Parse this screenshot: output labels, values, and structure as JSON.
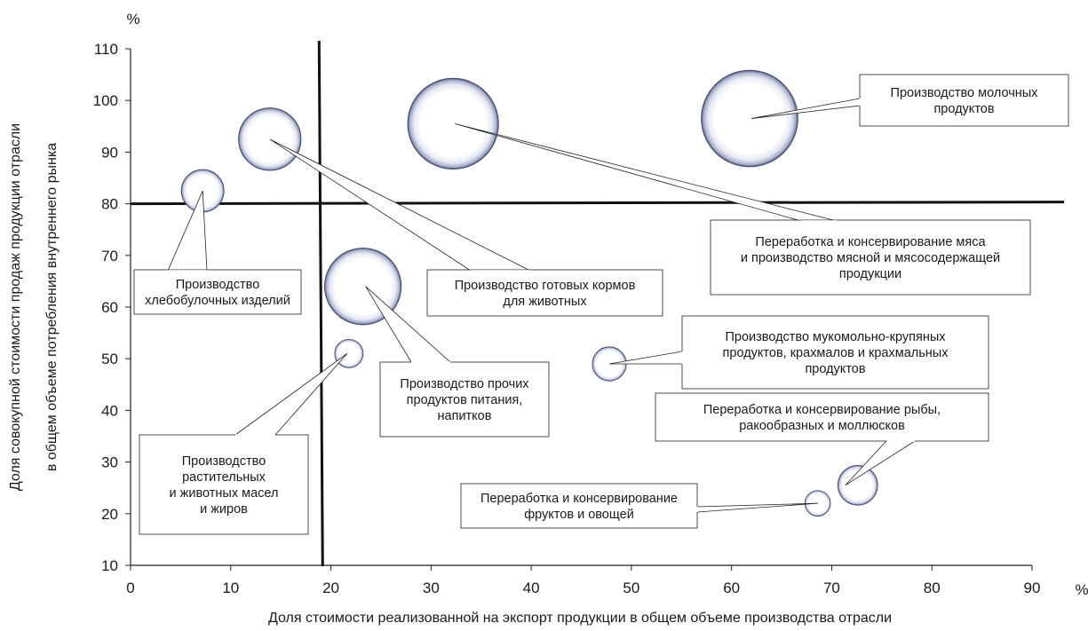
{
  "chart_data": {
    "type": "bubble",
    "xlabel": "Доля стоимости реализованной на экспорт продукции в общем объеме производства отрасли",
    "ylabel_lines": [
      "Доля совокупной стоимости продаж продукции отрасли",
      "в общем объеме потребления внутреннего рынка"
    ],
    "x_unit": "%",
    "y_unit": "%",
    "xlim": [
      0,
      90
    ],
    "ylim": [
      10,
      110
    ],
    "x_ticks": [
      0,
      10,
      20,
      30,
      40,
      50,
      60,
      70,
      80,
      90
    ],
    "y_ticks": [
      10,
      20,
      30,
      40,
      50,
      60,
      70,
      80,
      90,
      100,
      110
    ],
    "grid": false,
    "reference_lines": {
      "x": 19,
      "y": 80
    },
    "points": [
      {
        "x": 61.8,
        "y": 96.5,
        "size": 3.4,
        "label_lines": [
          "Производство молочных",
          "продуктов"
        ]
      },
      {
        "x": 32.2,
        "y": 95.5,
        "size": 3.2,
        "label_lines": [
          "Переработка и консервирование мяса",
          "и производство мясной и мясосодержащей",
          "продукции"
        ]
      },
      {
        "x": 13.9,
        "y": 92.5,
        "size": 2.2,
        "label_lines": [
          "Производство готовых кормов",
          "для животных"
        ]
      },
      {
        "x": 7.2,
        "y": 82.5,
        "size": 1.5,
        "label_lines": [
          "Производство",
          "хлебобулочных изделий"
        ]
      },
      {
        "x": 23.2,
        "y": 64,
        "size": 2.7,
        "label_lines": [
          "Производство прочих",
          "продуктов питания,",
          "напитков"
        ]
      },
      {
        "x": 21.8,
        "y": 51,
        "size": 1.0,
        "label_lines": [
          "Производство",
          "растительных",
          "и животных масел",
          "и жиров"
        ]
      },
      {
        "x": 47.8,
        "y": 49,
        "size": 1.2,
        "label_lines": [
          "Производство мукомольно-крупяных",
          "продуктов, крахмалов и крахмальных",
          "продуктов"
        ]
      },
      {
        "x": 72.6,
        "y": 25.5,
        "size": 1.4,
        "label_lines": [
          "Переработка и консервирование рыбы,",
          "ракообразных и моллюсков"
        ]
      },
      {
        "x": 68.6,
        "y": 22,
        "size": 0.9,
        "label_lines": [
          "Переработка и консервирование",
          "фруктов и овощей"
        ]
      }
    ]
  }
}
